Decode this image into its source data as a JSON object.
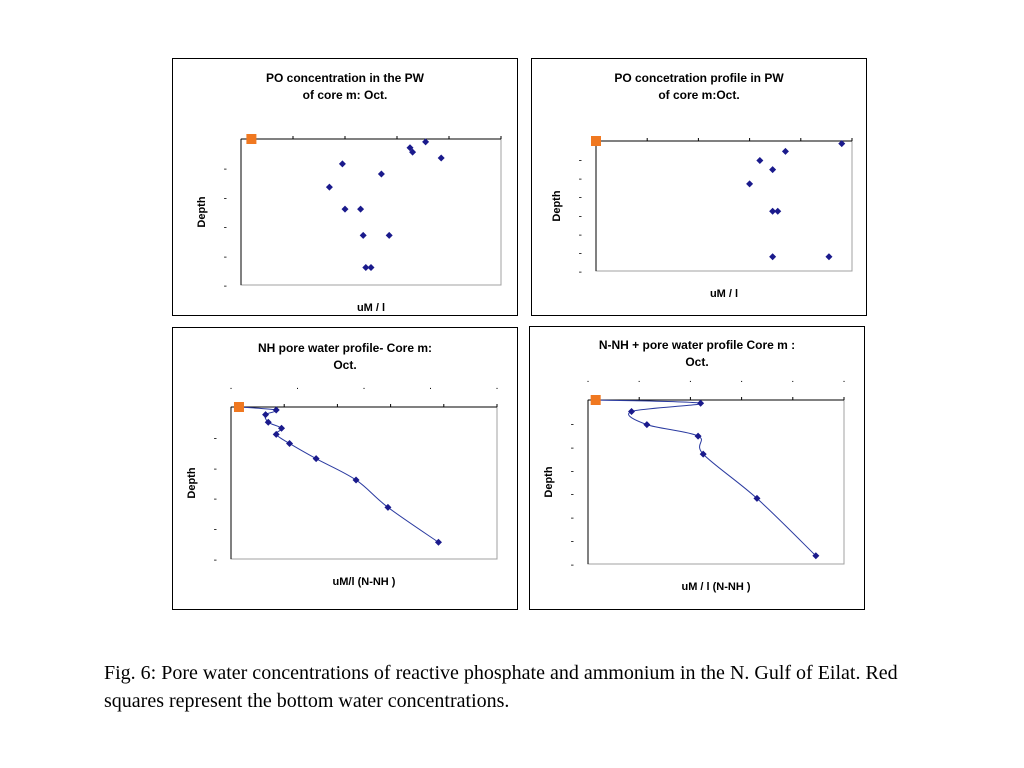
{
  "colors": {
    "point": "#1a1a8c",
    "line": "#2a3aa0",
    "bottom_water": "#f07820",
    "axis": "#000000"
  },
  "caption": "Fig. 6: Pore water concentrations of reactive phosphate and ammonium in the N. Gulf of Eilat. Red squares represent the bottom water concentrations.",
  "chart_data": [
    {
      "type": "scatter",
      "title_lines": [
        "PO   concentration in the PW",
        "of core        m: Oct."
      ],
      "xlabel": "uM / l",
      "ylabel": "Depth",
      "y_ticks": [
        "-",
        "-",
        "-",
        "-",
        "-"
      ],
      "x_ticks": [],
      "xlim": [
        0,
        1
      ],
      "ylim": [
        0,
        1
      ],
      "bottom_water": {
        "x": 0.04,
        "y": 0.0
      },
      "points": [
        {
          "x": 0.65,
          "y": 0.06
        },
        {
          "x": 0.66,
          "y": 0.09
        },
        {
          "x": 0.71,
          "y": 0.02
        },
        {
          "x": 0.77,
          "y": 0.13
        },
        {
          "x": 0.39,
          "y": 0.17
        },
        {
          "x": 0.54,
          "y": 0.24
        },
        {
          "x": 0.34,
          "y": 0.33
        },
        {
          "x": 0.4,
          "y": 0.48
        },
        {
          "x": 0.46,
          "y": 0.48
        },
        {
          "x": 0.47,
          "y": 0.66
        },
        {
          "x": 0.57,
          "y": 0.66
        },
        {
          "x": 0.48,
          "y": 0.88
        },
        {
          "x": 0.5,
          "y": 0.88
        }
      ],
      "connect": false
    },
    {
      "type": "scatter",
      "title_lines": [
        "PO   concetration profile in PW",
        "of core        m:Oct."
      ],
      "xlabel": "uM / l",
      "ylabel": "Depth",
      "y_ticks": [
        "-",
        "-",
        "-",
        "-",
        "-",
        "-",
        "-"
      ],
      "x_ticks": [],
      "xlim": [
        0,
        1
      ],
      "ylim": [
        0,
        1
      ],
      "bottom_water": {
        "x": 0.0,
        "y": 0.0
      },
      "points": [
        {
          "x": 0.96,
          "y": 0.02
        },
        {
          "x": 0.74,
          "y": 0.08
        },
        {
          "x": 0.64,
          "y": 0.15
        },
        {
          "x": 0.69,
          "y": 0.22
        },
        {
          "x": 0.6,
          "y": 0.33
        },
        {
          "x": 0.69,
          "y": 0.54
        },
        {
          "x": 0.71,
          "y": 0.54
        },
        {
          "x": 0.69,
          "y": 0.89
        },
        {
          "x": 0.91,
          "y": 0.89
        }
      ],
      "connect": false
    },
    {
      "type": "line",
      "title_lines": [
        "NH   pore water  profile- Core        m:",
        "Oct."
      ],
      "xlabel": "uM/l (N-NH  )",
      "ylabel": "Depth",
      "y_ticks": [
        "-",
        "-",
        "-",
        "-",
        "-"
      ],
      "x_ticks": [
        ".",
        ".",
        ".",
        ".",
        "."
      ],
      "xlim": [
        0,
        1
      ],
      "ylim": [
        0,
        1
      ],
      "bottom_water": {
        "x": 0.03,
        "y": 0.0
      },
      "points": [
        {
          "x": 0.03,
          "y": 0.0
        },
        {
          "x": 0.17,
          "y": 0.02
        },
        {
          "x": 0.13,
          "y": 0.05
        },
        {
          "x": 0.14,
          "y": 0.1
        },
        {
          "x": 0.19,
          "y": 0.14
        },
        {
          "x": 0.17,
          "y": 0.18
        },
        {
          "x": 0.22,
          "y": 0.24
        },
        {
          "x": 0.32,
          "y": 0.34
        },
        {
          "x": 0.47,
          "y": 0.48
        },
        {
          "x": 0.59,
          "y": 0.66
        },
        {
          "x": 0.78,
          "y": 0.89
        }
      ],
      "point_indices_from": 1,
      "connect": true
    },
    {
      "type": "line",
      "title_lines": [
        "N-NH  + pore water profile Core        m :",
        "Oct."
      ],
      "xlabel": "uM / l (N-NH  )",
      "ylabel": "Depth",
      "y_ticks": [
        "-",
        "-",
        "-",
        "-",
        "-",
        "-",
        "-"
      ],
      "x_ticks": [
        ".",
        ".",
        ".",
        ".",
        ".",
        "."
      ],
      "xlim": [
        0,
        1
      ],
      "ylim": [
        0,
        1
      ],
      "bottom_water": {
        "x": 0.03,
        "y": 0.0
      },
      "points": [
        {
          "x": 0.03,
          "y": 0.0
        },
        {
          "x": 0.44,
          "y": 0.02
        },
        {
          "x": 0.17,
          "y": 0.07
        },
        {
          "x": 0.23,
          "y": 0.15
        },
        {
          "x": 0.43,
          "y": 0.22
        },
        {
          "x": 0.45,
          "y": 0.33
        },
        {
          "x": 0.66,
          "y": 0.6
        },
        {
          "x": 0.89,
          "y": 0.95
        }
      ],
      "point_indices_from": 1,
      "connect": true
    }
  ]
}
